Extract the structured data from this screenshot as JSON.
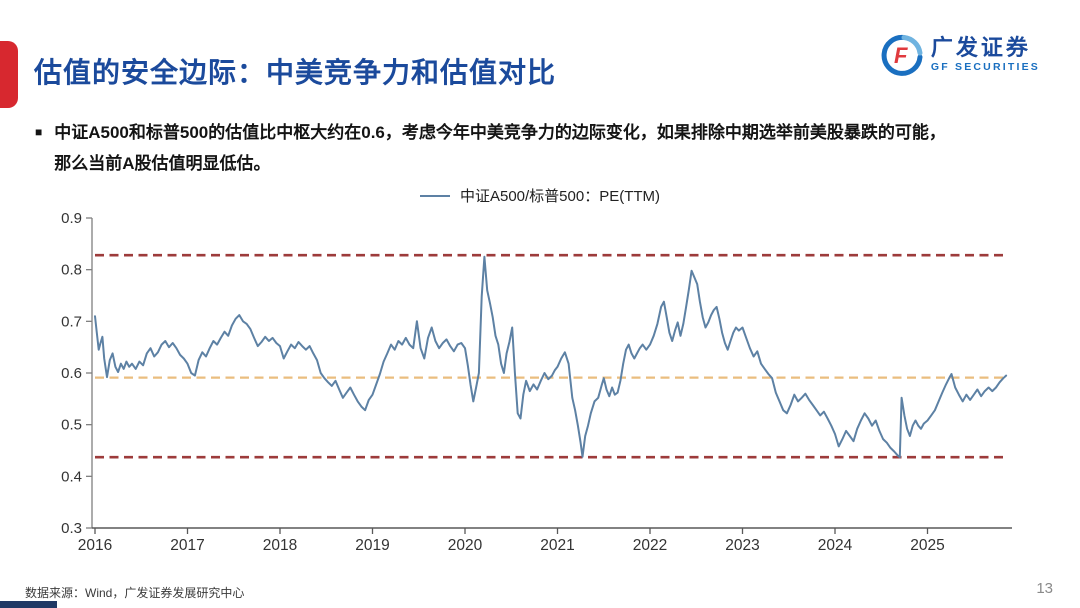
{
  "slide": {
    "title": "估值的安全边际：中美竞争力和估值对比",
    "bullet_marker": "■",
    "bullet_line1": "中证A500和标普500的估值比中枢大约在0.6，考虑今年中美竞争力的边际变化，如果排除中期选举前美股暴跌的可能，",
    "bullet_line2": "那么当前A股估值明显低估。",
    "source": "数据来源：Wind，广发证券发展研究中心",
    "page_number": "13"
  },
  "logo": {
    "cn": "广发证券",
    "en": "GF SECURITIES",
    "glyph": "F"
  },
  "colors": {
    "accent_red": "#d7282f",
    "title_blue": "#1b4a9c",
    "logo_blue": "#1a6fc0",
    "series_line": "#5d81a4",
    "band_red": "#9d3b3b",
    "band_orange": "#eabd7f",
    "axis_gray": "#7f7f7f",
    "tick_text": "#333333"
  },
  "chart_data": {
    "type": "line",
    "title": "中证A500/标普500：PE(TTM)",
    "legend_position": "top-center",
    "grid": false,
    "ylim": [
      0.3,
      0.9
    ],
    "ytick_step": 0.1,
    "xticks": [
      2016,
      2017,
      2018,
      2019,
      2020,
      2021,
      2022,
      2023,
      2024,
      2025
    ],
    "xlim": [
      2016.0,
      2025.92
    ],
    "line_color": "#5d81a4",
    "hlines": [
      {
        "name": "upper-band",
        "value": 0.828,
        "color": "#9d3b3b",
        "width": 2.6
      },
      {
        "name": "median-band",
        "value": 0.591,
        "color": "#eabd7f",
        "width": 2.2
      },
      {
        "name": "lower-band",
        "value": 0.437,
        "color": "#9d3b3b",
        "width": 2.6
      }
    ],
    "series": [
      {
        "name": "中证A500/标普500：PE(TTM)",
        "points": [
          [
            2016.0,
            0.71
          ],
          [
            2016.02,
            0.678
          ],
          [
            2016.04,
            0.645
          ],
          [
            2016.06,
            0.658
          ],
          [
            2016.08,
            0.67
          ],
          [
            2016.1,
            0.628
          ],
          [
            2016.13,
            0.592
          ],
          [
            2016.16,
            0.625
          ],
          [
            2016.19,
            0.638
          ],
          [
            2016.22,
            0.612
          ],
          [
            2016.25,
            0.602
          ],
          [
            2016.28,
            0.618
          ],
          [
            2016.31,
            0.608
          ],
          [
            2016.34,
            0.622
          ],
          [
            2016.37,
            0.612
          ],
          [
            2016.4,
            0.618
          ],
          [
            2016.44,
            0.608
          ],
          [
            2016.48,
            0.622
          ],
          [
            2016.52,
            0.615
          ],
          [
            2016.56,
            0.638
          ],
          [
            2016.6,
            0.648
          ],
          [
            2016.64,
            0.632
          ],
          [
            2016.68,
            0.64
          ],
          [
            2016.72,
            0.655
          ],
          [
            2016.76,
            0.662
          ],
          [
            2016.8,
            0.65
          ],
          [
            2016.84,
            0.658
          ],
          [
            2016.88,
            0.648
          ],
          [
            2016.92,
            0.635
          ],
          [
            2016.96,
            0.628
          ],
          [
            2017.0,
            0.618
          ],
          [
            2017.04,
            0.6
          ],
          [
            2017.08,
            0.595
          ],
          [
            2017.12,
            0.625
          ],
          [
            2017.16,
            0.64
          ],
          [
            2017.2,
            0.632
          ],
          [
            2017.24,
            0.648
          ],
          [
            2017.28,
            0.662
          ],
          [
            2017.32,
            0.655
          ],
          [
            2017.36,
            0.668
          ],
          [
            2017.4,
            0.68
          ],
          [
            2017.44,
            0.672
          ],
          [
            2017.48,
            0.692
          ],
          [
            2017.52,
            0.705
          ],
          [
            2017.56,
            0.712
          ],
          [
            2017.6,
            0.7
          ],
          [
            2017.64,
            0.695
          ],
          [
            2017.68,
            0.685
          ],
          [
            2017.72,
            0.668
          ],
          [
            2017.76,
            0.652
          ],
          [
            2017.8,
            0.66
          ],
          [
            2017.84,
            0.67
          ],
          [
            2017.88,
            0.662
          ],
          [
            2017.92,
            0.668
          ],
          [
            2017.96,
            0.658
          ],
          [
            2018.0,
            0.652
          ],
          [
            2018.04,
            0.628
          ],
          [
            2018.08,
            0.642
          ],
          [
            2018.12,
            0.655
          ],
          [
            2018.16,
            0.648
          ],
          [
            2018.2,
            0.66
          ],
          [
            2018.24,
            0.652
          ],
          [
            2018.28,
            0.645
          ],
          [
            2018.32,
            0.652
          ],
          [
            2018.36,
            0.638
          ],
          [
            2018.4,
            0.625
          ],
          [
            2018.44,
            0.6
          ],
          [
            2018.48,
            0.59
          ],
          [
            2018.52,
            0.582
          ],
          [
            2018.56,
            0.575
          ],
          [
            2018.6,
            0.585
          ],
          [
            2018.64,
            0.568
          ],
          [
            2018.68,
            0.552
          ],
          [
            2018.72,
            0.562
          ],
          [
            2018.76,
            0.572
          ],
          [
            2018.8,
            0.558
          ],
          [
            2018.84,
            0.545
          ],
          [
            2018.88,
            0.535
          ],
          [
            2018.92,
            0.528
          ],
          [
            2018.96,
            0.548
          ],
          [
            2019.0,
            0.558
          ],
          [
            2019.04,
            0.578
          ],
          [
            2019.08,
            0.598
          ],
          [
            2019.12,
            0.622
          ],
          [
            2019.16,
            0.638
          ],
          [
            2019.2,
            0.655
          ],
          [
            2019.24,
            0.645
          ],
          [
            2019.28,
            0.662
          ],
          [
            2019.32,
            0.655
          ],
          [
            2019.36,
            0.668
          ],
          [
            2019.4,
            0.655
          ],
          [
            2019.44,
            0.648
          ],
          [
            2019.48,
            0.7
          ],
          [
            2019.52,
            0.648
          ],
          [
            2019.56,
            0.628
          ],
          [
            2019.6,
            0.668
          ],
          [
            2019.64,
            0.688
          ],
          [
            2019.68,
            0.662
          ],
          [
            2019.72,
            0.648
          ],
          [
            2019.76,
            0.658
          ],
          [
            2019.8,
            0.665
          ],
          [
            2019.84,
            0.652
          ],
          [
            2019.88,
            0.642
          ],
          [
            2019.92,
            0.655
          ],
          [
            2019.96,
            0.658
          ],
          [
            2020.0,
            0.648
          ],
          [
            2020.03,
            0.615
          ],
          [
            2020.06,
            0.578
          ],
          [
            2020.09,
            0.545
          ],
          [
            2020.12,
            0.572
          ],
          [
            2020.15,
            0.6
          ],
          [
            2020.18,
            0.748
          ],
          [
            2020.21,
            0.825
          ],
          [
            2020.24,
            0.76
          ],
          [
            2020.27,
            0.735
          ],
          [
            2020.3,
            0.708
          ],
          [
            2020.33,
            0.672
          ],
          [
            2020.36,
            0.655
          ],
          [
            2020.39,
            0.618
          ],
          [
            2020.42,
            0.6
          ],
          [
            2020.45,
            0.638
          ],
          [
            2020.48,
            0.66
          ],
          [
            2020.51,
            0.688
          ],
          [
            2020.54,
            0.6
          ],
          [
            2020.57,
            0.522
          ],
          [
            2020.6,
            0.512
          ],
          [
            2020.63,
            0.558
          ],
          [
            2020.66,
            0.585
          ],
          [
            2020.7,
            0.565
          ],
          [
            2020.74,
            0.578
          ],
          [
            2020.78,
            0.568
          ],
          [
            2020.82,
            0.585
          ],
          [
            2020.86,
            0.6
          ],
          [
            2020.9,
            0.588
          ],
          [
            2020.94,
            0.595
          ],
          [
            2020.97,
            0.605
          ],
          [
            2021.0,
            0.612
          ],
          [
            2021.04,
            0.628
          ],
          [
            2021.08,
            0.64
          ],
          [
            2021.12,
            0.618
          ],
          [
            2021.16,
            0.552
          ],
          [
            2021.19,
            0.528
          ],
          [
            2021.22,
            0.498
          ],
          [
            2021.25,
            0.465
          ],
          [
            2021.27,
            0.438
          ],
          [
            2021.3,
            0.478
          ],
          [
            2021.33,
            0.498
          ],
          [
            2021.36,
            0.522
          ],
          [
            2021.4,
            0.545
          ],
          [
            2021.44,
            0.552
          ],
          [
            2021.48,
            0.578
          ],
          [
            2021.5,
            0.59
          ],
          [
            2021.53,
            0.568
          ],
          [
            2021.56,
            0.555
          ],
          [
            2021.59,
            0.572
          ],
          [
            2021.62,
            0.558
          ],
          [
            2021.65,
            0.562
          ],
          [
            2021.68,
            0.585
          ],
          [
            2021.71,
            0.618
          ],
          [
            2021.74,
            0.645
          ],
          [
            2021.77,
            0.655
          ],
          [
            2021.8,
            0.638
          ],
          [
            2021.83,
            0.628
          ],
          [
            2021.86,
            0.638
          ],
          [
            2021.89,
            0.648
          ],
          [
            2021.92,
            0.655
          ],
          [
            2021.96,
            0.645
          ],
          [
            2022.0,
            0.655
          ],
          [
            2022.04,
            0.672
          ],
          [
            2022.08,
            0.695
          ],
          [
            2022.12,
            0.728
          ],
          [
            2022.15,
            0.738
          ],
          [
            2022.18,
            0.708
          ],
          [
            2022.21,
            0.678
          ],
          [
            2022.24,
            0.662
          ],
          [
            2022.27,
            0.682
          ],
          [
            2022.3,
            0.698
          ],
          [
            2022.33,
            0.672
          ],
          [
            2022.36,
            0.695
          ],
          [
            2022.39,
            0.728
          ],
          [
            2022.42,
            0.762
          ],
          [
            2022.45,
            0.798
          ],
          [
            2022.48,
            0.785
          ],
          [
            2022.51,
            0.772
          ],
          [
            2022.54,
            0.738
          ],
          [
            2022.57,
            0.708
          ],
          [
            2022.6,
            0.688
          ],
          [
            2022.63,
            0.698
          ],
          [
            2022.66,
            0.712
          ],
          [
            2022.69,
            0.722
          ],
          [
            2022.72,
            0.728
          ],
          [
            2022.75,
            0.705
          ],
          [
            2022.78,
            0.678
          ],
          [
            2022.81,
            0.658
          ],
          [
            2022.84,
            0.645
          ],
          [
            2022.87,
            0.662
          ],
          [
            2022.9,
            0.678
          ],
          [
            2022.93,
            0.688
          ],
          [
            2022.96,
            0.682
          ],
          [
            2023.0,
            0.688
          ],
          [
            2023.04,
            0.668
          ],
          [
            2023.08,
            0.648
          ],
          [
            2023.12,
            0.632
          ],
          [
            2023.16,
            0.642
          ],
          [
            2023.2,
            0.618
          ],
          [
            2023.24,
            0.608
          ],
          [
            2023.28,
            0.598
          ],
          [
            2023.32,
            0.59
          ],
          [
            2023.36,
            0.562
          ],
          [
            2023.4,
            0.545
          ],
          [
            2023.44,
            0.528
          ],
          [
            2023.48,
            0.522
          ],
          [
            2023.52,
            0.538
          ],
          [
            2023.56,
            0.558
          ],
          [
            2023.6,
            0.545
          ],
          [
            2023.64,
            0.552
          ],
          [
            2023.68,
            0.56
          ],
          [
            2023.72,
            0.548
          ],
          [
            2023.76,
            0.538
          ],
          [
            2023.8,
            0.528
          ],
          [
            2023.84,
            0.518
          ],
          [
            2023.88,
            0.525
          ],
          [
            2023.92,
            0.512
          ],
          [
            2023.96,
            0.498
          ],
          [
            2024.0,
            0.482
          ],
          [
            2024.04,
            0.458
          ],
          [
            2024.08,
            0.472
          ],
          [
            2024.12,
            0.488
          ],
          [
            2024.16,
            0.478
          ],
          [
            2024.2,
            0.468
          ],
          [
            2024.24,
            0.492
          ],
          [
            2024.28,
            0.508
          ],
          [
            2024.32,
            0.522
          ],
          [
            2024.36,
            0.512
          ],
          [
            2024.4,
            0.498
          ],
          [
            2024.44,
            0.508
          ],
          [
            2024.48,
            0.488
          ],
          [
            2024.52,
            0.472
          ],
          [
            2024.56,
            0.465
          ],
          [
            2024.6,
            0.455
          ],
          [
            2024.64,
            0.448
          ],
          [
            2024.68,
            0.44
          ],
          [
            2024.7,
            0.437
          ],
          [
            2024.72,
            0.552
          ],
          [
            2024.75,
            0.518
          ],
          [
            2024.78,
            0.492
          ],
          [
            2024.81,
            0.478
          ],
          [
            2024.84,
            0.498
          ],
          [
            2024.87,
            0.508
          ],
          [
            2024.9,
            0.498
          ],
          [
            2024.93,
            0.492
          ],
          [
            2024.96,
            0.502
          ],
          [
            2025.0,
            0.508
          ],
          [
            2025.04,
            0.518
          ],
          [
            2025.08,
            0.528
          ],
          [
            2025.12,
            0.545
          ],
          [
            2025.16,
            0.562
          ],
          [
            2025.2,
            0.578
          ],
          [
            2025.24,
            0.592
          ],
          [
            2025.26,
            0.598
          ],
          [
            2025.3,
            0.572
          ],
          [
            2025.34,
            0.558
          ],
          [
            2025.38,
            0.545
          ],
          [
            2025.42,
            0.558
          ],
          [
            2025.46,
            0.548
          ],
          [
            2025.5,
            0.558
          ],
          [
            2025.54,
            0.568
          ],
          [
            2025.58,
            0.555
          ],
          [
            2025.62,
            0.565
          ],
          [
            2025.66,
            0.572
          ],
          [
            2025.7,
            0.565
          ],
          [
            2025.74,
            0.572
          ],
          [
            2025.78,
            0.582
          ],
          [
            2025.82,
            0.59
          ],
          [
            2025.85,
            0.595
          ]
        ]
      }
    ]
  }
}
